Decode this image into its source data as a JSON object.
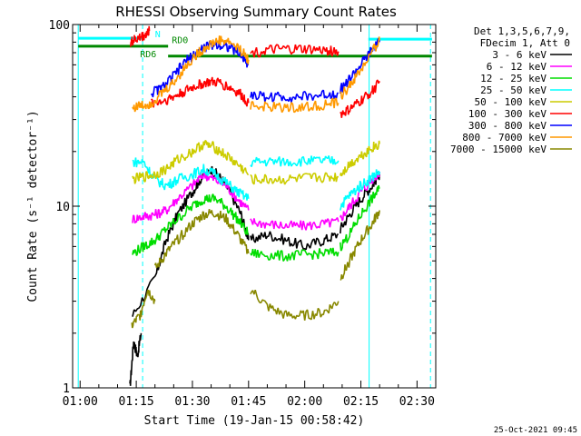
{
  "chart_data": {
    "type": "line",
    "title": "RHESSI Observing Summary Count Rates",
    "xlabel": "Start Time (19-Jan-15 00:58:42)",
    "ylabel": "Count Rate (s⁻¹ detector⁻¹)",
    "y_scale": "log",
    "ylim": [
      1,
      100
    ],
    "x_range_minutes": [
      -2,
      95
    ],
    "x_ticks": [
      {
        "label": "01:00",
        "t": 0
      },
      {
        "label": "01:15",
        "t": 15
      },
      {
        "label": "01:30",
        "t": 30
      },
      {
        "label": "01:45",
        "t": 45
      },
      {
        "label": "02:00",
        "t": 60
      },
      {
        "label": "02:15",
        "t": 75
      },
      {
        "label": "02:30",
        "t": 90
      }
    ],
    "y_ticks": [
      {
        "label": "1",
        "v": 1
      },
      {
        "label": "10",
        "v": 10
      },
      {
        "label": "100",
        "v": 100
      }
    ],
    "legend_header": [
      "Det 1,3,5,6,7,9,",
      "FDecim 1, Att 0"
    ],
    "legend_placement": "right",
    "footer_date": "25-Oct-2021 09:45",
    "annotations": [
      {
        "text": "RD0",
        "t": 24.5,
        "v": 79,
        "color": "#008800"
      },
      {
        "text": "RD6",
        "t": 16,
        "v": 66,
        "color": "#008800"
      },
      {
        "text": "N",
        "t": 20,
        "v": 85,
        "color": "#00ffff"
      }
    ],
    "vlines": [
      {
        "t": -0.5,
        "color": "#00ffff",
        "style": "solid"
      },
      {
        "t": 16.7,
        "color": "#00ffff",
        "style": "dashed"
      },
      {
        "t": 77.2,
        "color": "#00ffff",
        "style": "solid"
      },
      {
        "t": 93.6,
        "color": "#00ffff",
        "style": "dashed"
      }
    ],
    "hbars": [
      {
        "t0": -0.5,
        "t1": 17,
        "v": 84,
        "color": "#00ffff"
      },
      {
        "t0": 77,
        "t1": 94,
        "v": 83,
        "color": "#00ffff"
      },
      {
        "t0": -0.5,
        "t1": 23.5,
        "v": 76,
        "color": "#008800"
      },
      {
        "t0": 23.5,
        "t1": 94,
        "v": 67,
        "color": "#008800"
      }
    ],
    "series": [
      {
        "name": "3 - 6 keV",
        "color": "#000000",
        "segments": [
          {
            "t": [
              13.3,
              14.3,
              15.3,
              16.3
            ],
            "v": [
              1.0,
              1.8,
              1.5,
              2.0
            ]
          },
          {
            "t": [
              14,
              20,
              23,
              26,
              30,
              32,
              35,
              38,
              40,
              43,
              45
            ],
            "v": [
              2.5,
              4.0,
              6.5,
              9.0,
              12,
              14,
              16,
              14,
              12,
              9,
              6.5
            ]
          },
          {
            "t": [
              45.5,
              50,
              55,
              60,
              65,
              69
            ],
            "v": [
              6.5,
              7.0,
              6.5,
              6.0,
              6.5,
              7.0
            ]
          },
          {
            "t": [
              69.5,
              72,
              75,
              78,
              80
            ],
            "v": [
              7.5,
              9,
              11,
              13,
              15
            ]
          }
        ]
      },
      {
        "name": "6 - 12 keV",
        "color": "#ff00ff",
        "segments": [
          {
            "t": [
              14,
              17,
              20,
              23,
              26,
              30,
              33,
              36,
              39,
              42,
              45
            ],
            "v": [
              8.5,
              8.8,
              9.0,
              9.5,
              11,
              13,
              15,
              14,
              13,
              11,
              9.5
            ]
          },
          {
            "t": [
              45.5,
              50,
              55,
              60,
              65,
              69
            ],
            "v": [
              8.2,
              8.0,
              7.8,
              7.8,
              8.0,
              8.2
            ]
          },
          {
            "t": [
              69.5,
              72,
              75,
              78,
              80
            ],
            "v": [
              8.5,
              10,
              12,
              14,
              15.5
            ]
          }
        ]
      },
      {
        "name": "12 - 25 keV",
        "color": "#00dd00",
        "segments": [
          {
            "t": [
              14,
              17,
              20,
              23,
              26,
              30,
              33,
              36,
              39,
              42,
              45
            ],
            "v": [
              5.5,
              6.0,
              6.5,
              7.5,
              8.5,
              10,
              11,
              11,
              10,
              8.5,
              7
            ]
          },
          {
            "t": [
              45.5,
              50,
              55,
              60,
              65,
              69
            ],
            "v": [
              5.5,
              5.4,
              5.3,
              5.4,
              5.5,
              5.6
            ]
          },
          {
            "t": [
              69.5,
              72,
              75,
              78,
              80
            ],
            "v": [
              6,
              7,
              9,
              11,
              12.5
            ]
          }
        ]
      },
      {
        "name": "25 - 50 keV",
        "color": "#00ffff",
        "segments": [
          {
            "t": [
              14,
              17,
              20,
              23,
              26,
              30,
              33,
              36,
              39,
              42,
              45
            ],
            "v": [
              17.5,
              17.5,
              14,
              13,
              14,
              15,
              16,
              15,
              13.5,
              12,
              11
            ]
          },
          {
            "t": [
              45.5,
              50,
              55,
              60,
              65,
              69
            ],
            "v": [
              17.5,
              17.6,
              17.6,
              17.7,
              17.8,
              17.8
            ]
          },
          {
            "t": [
              69.5,
              72,
              75,
              78,
              80
            ],
            "v": [
              10,
              11.5,
              13,
              14.5,
              15.5
            ]
          }
        ]
      },
      {
        "name": "50 - 100 keV",
        "color": "#cccc00",
        "segments": [
          {
            "t": [
              14,
              17,
              20,
              23,
              26,
              30,
              33,
              36,
              39,
              42,
              45
            ],
            "v": [
              14,
              14.5,
              15,
              16,
              18,
              20,
              22,
              21,
              19,
              17,
              15
            ]
          },
          {
            "t": [
              45.5,
              50,
              55,
              60,
              65,
              69
            ],
            "v": [
              14,
              14,
              14,
              14.2,
              14.4,
              14.5
            ]
          },
          {
            "t": [
              69.5,
              72,
              75,
              78,
              80
            ],
            "v": [
              15,
              17,
              19,
              21,
              22
            ]
          }
        ]
      },
      {
        "name": "100 - 300 keV",
        "color": "#ff0000",
        "segments": [
          {
            "t": [
              13.5,
              14.5,
              16,
              17.5,
              18.5
            ],
            "v": [
              80,
              82,
              85,
              88,
              92
            ]
          },
          {
            "t": [
              19,
              22,
              25,
              28,
              31,
              34,
              37,
              40,
              43,
              45
            ],
            "v": [
              37,
              38,
              40,
              43,
              46,
              48,
              48,
              45,
              41,
              37
            ]
          },
          {
            "t": [
              45.5,
              50,
              55,
              60,
              65,
              69
            ],
            "v": [
              70,
              72,
              73,
              73,
              72,
              71
            ]
          },
          {
            "t": [
              69.5,
              72,
              75,
              78,
              80
            ],
            "v": [
              32,
              34,
              38,
              43,
              48
            ]
          }
        ]
      },
      {
        "name": "300 - 800 keV",
        "color": "#0000ff",
        "segments": [
          {
            "t": [
              19,
              22,
              25,
              28,
              31,
              34,
              37,
              40,
              43,
              45
            ],
            "v": [
              42,
              45,
              52,
              62,
              70,
              76,
              78,
              75,
              68,
              60
            ]
          },
          {
            "t": [
              45.5,
              50,
              55,
              60,
              65,
              69
            ],
            "v": [
              41,
              40,
              40,
              40,
              41,
              42
            ]
          },
          {
            "t": [
              69.5,
              72,
              75,
              78,
              80
            ],
            "v": [
              44,
              50,
              60,
              72,
              80
            ]
          }
        ]
      },
      {
        "name": "800 - 7000 keV",
        "color": "#ff9900",
        "segments": [
          {
            "t": [
              14,
              17,
              19
            ],
            "v": [
              35,
              36,
              37
            ]
          },
          {
            "t": [
              19,
              22,
              25,
              28,
              31,
              34,
              37,
              40,
              43,
              45
            ],
            "v": [
              37,
              42,
              48,
              58,
              68,
              76,
              82,
              80,
              72,
              64
            ]
          },
          {
            "t": [
              45.5,
              50,
              55,
              60,
              65,
              69
            ],
            "v": [
              36,
              35,
              35,
              35,
              36,
              37
            ]
          },
          {
            "t": [
              69.5,
              72,
              75,
              78,
              80
            ],
            "v": [
              40,
              46,
              56,
              70,
              82
            ]
          }
        ]
      },
      {
        "name": "7000 - 15000 keV",
        "color": "#888800",
        "segments": [
          {
            "t": [
              13.8,
              16,
              18,
              20
            ],
            "v": [
              2.2,
              2.5,
              3.5,
              3.0
            ]
          },
          {
            "t": [
              20,
              23,
              26,
              30,
              33,
              36,
              39,
              42,
              45
            ],
            "v": [
              4.5,
              5.5,
              6.5,
              8,
              9,
              9.2,
              8.5,
              7,
              5.5
            ]
          },
          {
            "t": [
              45.5,
              50,
              55,
              60,
              65,
              69
            ],
            "v": [
              3.5,
              2.8,
              2.5,
              2.5,
              2.6,
              3.0
            ]
          },
          {
            "t": [
              69.5,
              72,
              75,
              78,
              80
            ],
            "v": [
              4.0,
              5,
              6.5,
              8,
              9.5
            ]
          }
        ]
      }
    ]
  }
}
